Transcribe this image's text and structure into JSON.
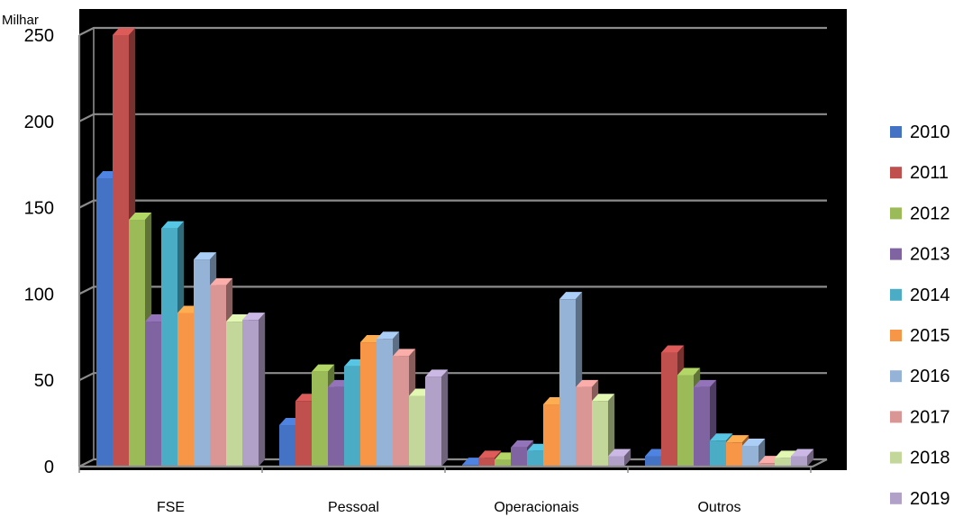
{
  "chart_data": {
    "type": "bar",
    "unit_label": "Milhar",
    "categories": [
      "FSE",
      "Pessoal",
      "Operacionais",
      "Outros"
    ],
    "ylim": [
      0,
      250
    ],
    "yticks": [
      0,
      50,
      100,
      150,
      200,
      250
    ],
    "grid": true,
    "legend_position": "right",
    "series": [
      {
        "name": "2010",
        "color": "#4472c4",
        "values": [
          167,
          24,
          1,
          6
        ]
      },
      {
        "name": "2011",
        "color": "#c0504d",
        "values": [
          250,
          38,
          5,
          66
        ]
      },
      {
        "name": "2012",
        "color": "#9bbb59",
        "values": [
          143,
          55,
          4,
          53
        ]
      },
      {
        "name": "2013",
        "color": "#8064a2",
        "values": [
          84,
          46,
          11,
          46
        ]
      },
      {
        "name": "2014",
        "color": "#4bacc6",
        "values": [
          138,
          58,
          9,
          15
        ]
      },
      {
        "name": "2015",
        "color": "#f79646",
        "values": [
          89,
          72,
          36,
          14
        ]
      },
      {
        "name": "2016",
        "color": "#95b3d7",
        "values": [
          120,
          74,
          97,
          12
        ]
      },
      {
        "name": "2017",
        "color": "#da9694",
        "values": [
          105,
          64,
          46,
          2
        ]
      },
      {
        "name": "2018",
        "color": "#c4d79b",
        "values": [
          84,
          41,
          38,
          5
        ]
      },
      {
        "name": "2019",
        "color": "#b1a0c7",
        "values": [
          85,
          52,
          6,
          6
        ]
      }
    ]
  }
}
